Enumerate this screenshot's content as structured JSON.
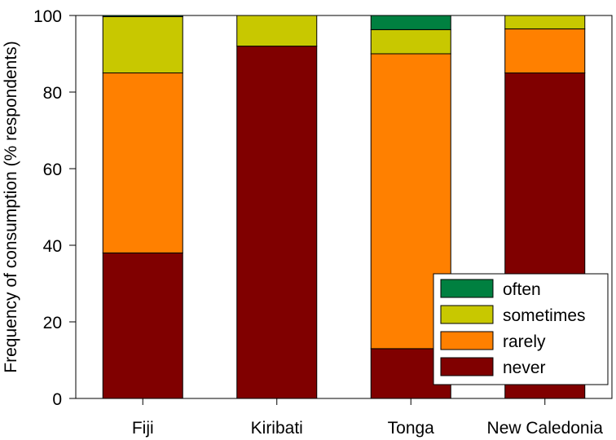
{
  "chart_data": {
    "type": "bar",
    "stacked": true,
    "title": "",
    "xlabel": "",
    "ylabel": "Frequency of consumption (% respondents)",
    "ylim": [
      0,
      100
    ],
    "yticks": [
      0,
      20,
      40,
      60,
      80,
      100
    ],
    "grid": false,
    "legend_position": "bottom-right",
    "categories": [
      "Fiji",
      "Kiribati",
      "Tonga",
      "New Caledonia"
    ],
    "series": [
      {
        "name": "never",
        "color": "#800000",
        "values": [
          38.0,
          92.0,
          13.0,
          85.0
        ]
      },
      {
        "name": "rarely",
        "color": "#ff8000",
        "values": [
          47.0,
          0.0,
          77.0,
          11.5
        ]
      },
      {
        "name": "sometimes",
        "color": "#c8c800",
        "values": [
          14.7,
          8.0,
          6.3,
          3.5
        ]
      },
      {
        "name": "often",
        "color": "#008040",
        "values": [
          0.3,
          0.0,
          3.7,
          0.0
        ]
      }
    ],
    "legend_order": [
      "often",
      "sometimes",
      "rarely",
      "never"
    ]
  }
}
